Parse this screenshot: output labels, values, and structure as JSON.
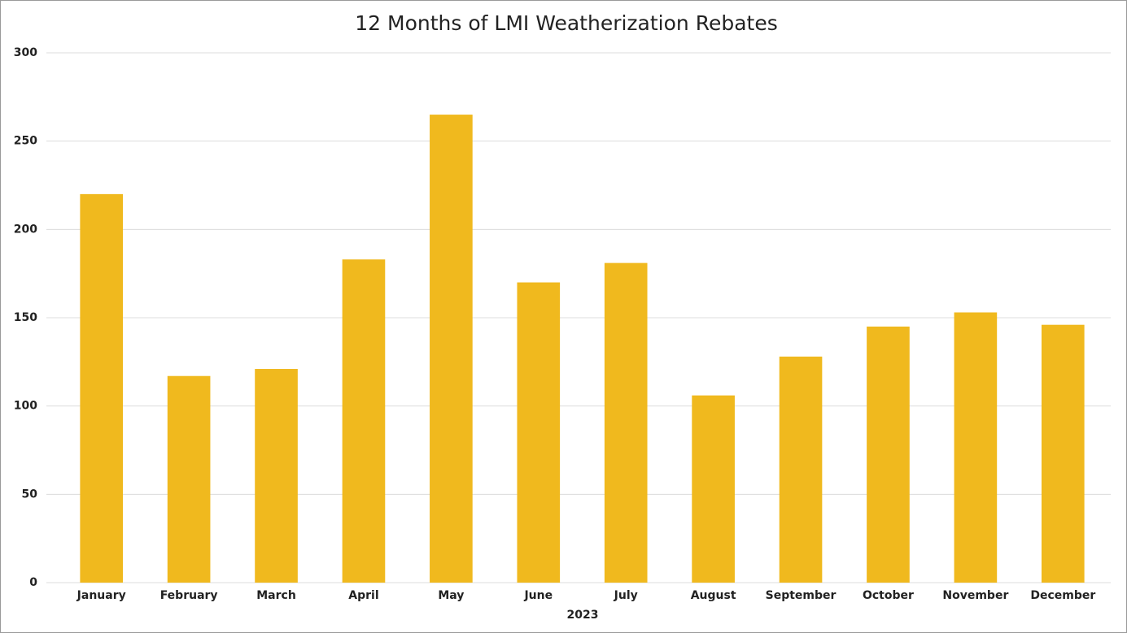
{
  "chart_data": {
    "type": "bar",
    "title": "12 Months of LMI Weatherization Rebates",
    "x_label": "2023",
    "categories": [
      "January",
      "February",
      "March",
      "April",
      "May",
      "June",
      "July",
      "August",
      "September",
      "October",
      "November",
      "December"
    ],
    "values": [
      220,
      117,
      121,
      183,
      265,
      170,
      181,
      106,
      128,
      145,
      153,
      146
    ],
    "color": "#f0b91e",
    "ylim": [
      0,
      300
    ],
    "yticks": [
      0,
      50,
      100,
      150,
      200,
      250,
      300
    ],
    "grid": true
  }
}
